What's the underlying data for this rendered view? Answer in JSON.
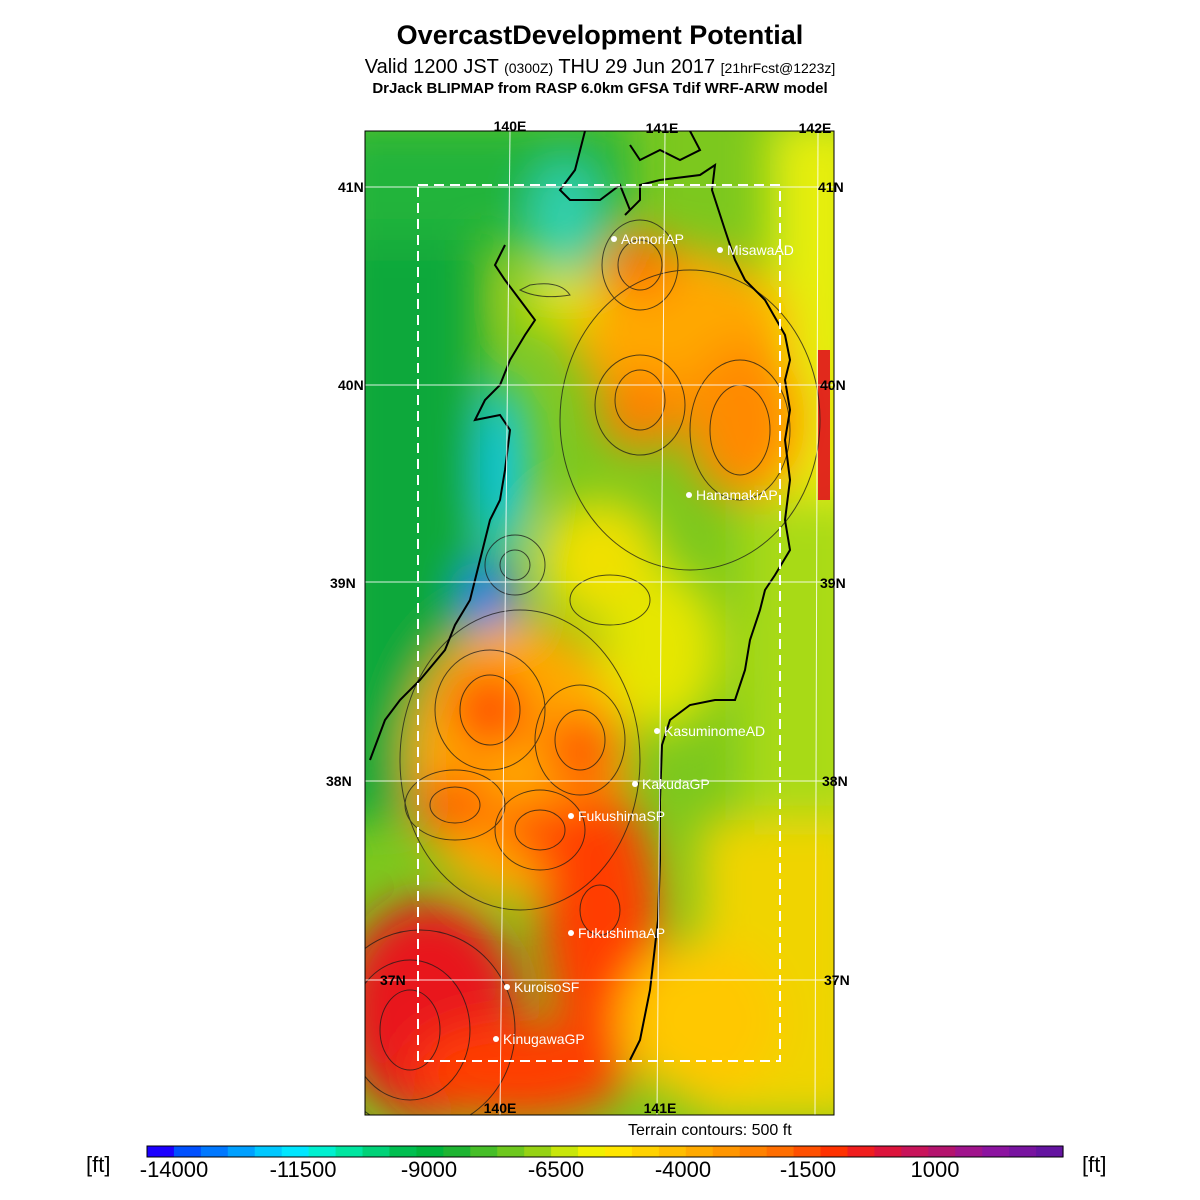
{
  "header": {
    "title": "OvercastDevelopment Potential",
    "valid_prefix": "Valid 1200 JST",
    "valid_zulu": "(0300Z)",
    "valid_date": "THU 29 Jun 2017",
    "forecast": "[21hrFcst@1223z]",
    "model_line": "DrJack BLIPMAP from RASP 6.0km GFSA Tdif WRF-ARW model"
  },
  "map": {
    "lon_labels_top": [
      "140E",
      "141E",
      "142E"
    ],
    "lon_labels_bottom": [
      "140E",
      "141E"
    ],
    "lat_labels_left": [
      "41N",
      "40N",
      "39N",
      "38N",
      "37N"
    ],
    "lat_labels_right": [
      "41N",
      "40N",
      "39N",
      "38N",
      "37N"
    ],
    "stations": [
      {
        "name": "AomoriAP"
      },
      {
        "name": "MisawaAD"
      },
      {
        "name": "HanamakiAP"
      },
      {
        "name": "KasuminomeAD"
      },
      {
        "name": "KakudaGP"
      },
      {
        "name": "FukushimaSP"
      },
      {
        "name": "FukushimaAP"
      },
      {
        "name": "KuroisoSF"
      },
      {
        "name": "KinugawaGP"
      }
    ]
  },
  "footer": {
    "terrain_note": "Terrain contours: 500 ft",
    "unit_left": "[ft]",
    "unit_right": "[ft]"
  },
  "colorbar": {
    "tick_labels": [
      "-14000",
      "-11500",
      "-9000",
      "-6500",
      "-4000",
      "-1500",
      "1000"
    ],
    "colors": [
      "#1c00ff",
      "#0050ff",
      "#0078ff",
      "#00a0ff",
      "#00c8ff",
      "#00e6ff",
      "#00f0d0",
      "#00e6a0",
      "#00d278",
      "#00be50",
      "#00b43c",
      "#1eb432",
      "#46be28",
      "#6ec81e",
      "#96d214",
      "#c8e60a",
      "#f0f000",
      "#ffe600",
      "#ffd200",
      "#ffbe00",
      "#ffaa00",
      "#ff9600",
      "#ff8200",
      "#ff6e00",
      "#ff5000",
      "#ff3200",
      "#f01e1e",
      "#dc143c",
      "#c8145a",
      "#b4146e",
      "#a0148c",
      "#8c14a0",
      "#7814a0",
      "#6414a0"
    ]
  }
}
